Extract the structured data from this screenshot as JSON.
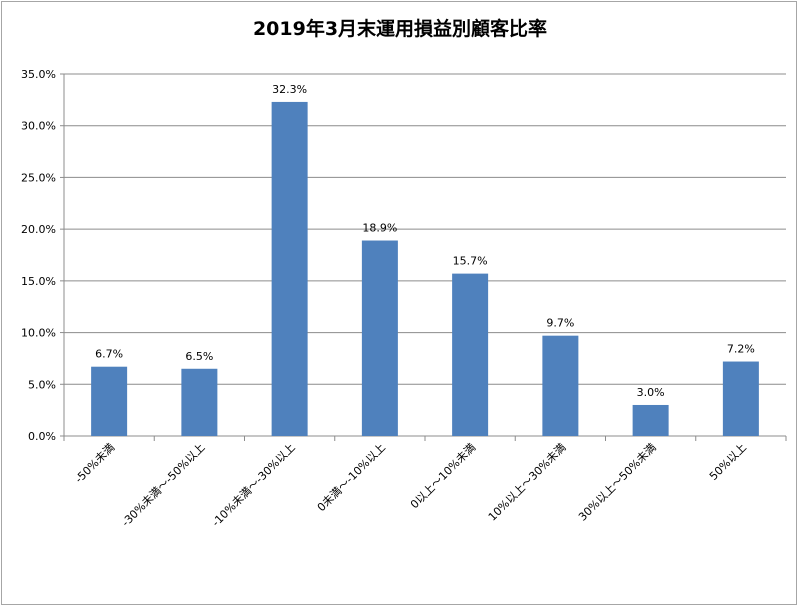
{
  "chart_data": {
    "type": "bar",
    "title": "2019年3月末運用損益別顧客比率",
    "categories": [
      "-50%未満",
      "-30%未満～-50%以上",
      "-10%未満～-30%以上",
      "0未満～-10%以上",
      "0以上～10%未満",
      "10%以上～30%未満",
      "30%以上～50%未満",
      "50%以上"
    ],
    "values": [
      6.7,
      6.5,
      32.3,
      18.9,
      15.7,
      9.7,
      3.0,
      7.2
    ],
    "data_labels": [
      "6.7%",
      "6.5%",
      "32.3%",
      "18.9%",
      "15.7%",
      "9.7%",
      "3.0%",
      "7.2%"
    ],
    "y_ticks": [
      "0.0%",
      "5.0%",
      "10.0%",
      "15.0%",
      "20.0%",
      "25.0%",
      "30.0%",
      "35.0%"
    ],
    "ylim": [
      0,
      35
    ],
    "xlabel": "",
    "ylabel": "",
    "grid": true,
    "legend": "none",
    "bar_color": "#4f81bd"
  }
}
